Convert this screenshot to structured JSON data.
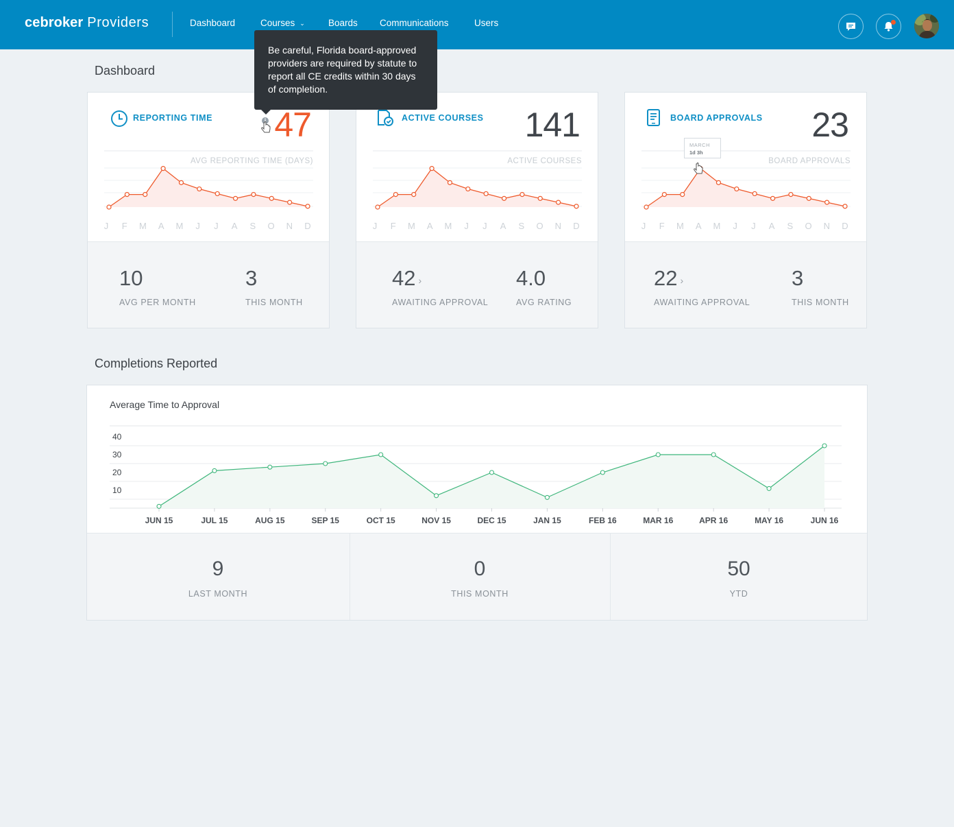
{
  "nav": {
    "brand_bold": "cebroker",
    "brand_light": "Providers",
    "links": [
      "Dashboard",
      "Courses",
      "Boards",
      "Communications",
      "Users"
    ],
    "icons": [
      "chat-icon",
      "bell-icon",
      "avatar"
    ]
  },
  "colors": {
    "nav": "#0189c3",
    "accent_orange": "#ee5a2c",
    "chart_green": "#3fb67c",
    "label_blue": "#0f8fc5"
  },
  "page": {
    "title": "Dashboard",
    "section2_title": "Completions Reported"
  },
  "tooltip": {
    "text": "Be careful, Florida board-approved providers are required by statute to report all CE credits within 30 days of completion."
  },
  "hover_tip": {
    "month": "MARCH",
    "value": "1d 3h"
  },
  "cards": [
    {
      "label": "REPORTING TIME",
      "value": "47",
      "chart_label": "AVG REPORTING TIME (DAYS)",
      "stats": [
        {
          "value": "10",
          "label": "AVG PER MONTH"
        },
        {
          "value": "3",
          "label": "THIS MONTH"
        }
      ]
    },
    {
      "label": "ACTIVE COURSES",
      "value": "141",
      "chart_label": "ACTIVE COURSES",
      "stats": [
        {
          "value": "42",
          "label": "AWAITING APPROVAL"
        },
        {
          "value": "4.0",
          "label": "AVG RATING"
        }
      ]
    },
    {
      "label": "BOARD APPROVALS",
      "value": "23",
      "chart_label": "BOARD APPROVALS",
      "stats": [
        {
          "value": "22",
          "label": "AWAITING APPROVAL"
        },
        {
          "value": "3",
          "label": "THIS MONTH"
        }
      ]
    }
  ],
  "completions": {
    "chart_title": "Average Time to Approval",
    "stats": [
      {
        "value": "9",
        "label": "LAST MONTH"
      },
      {
        "value": "0",
        "label": "THIS MONTH"
      },
      {
        "value": "50",
        "label": "YTD"
      }
    ]
  },
  "chart_data": [
    {
      "type": "area",
      "categories": [
        "J",
        "F",
        "M",
        "A",
        "M",
        "J",
        "J",
        "A",
        "S",
        "O",
        "N",
        "D"
      ],
      "series": [
        {
          "values": [
            0,
            16,
            16,
            49,
            31,
            23,
            17,
            11,
            16,
            11,
            6,
            1
          ]
        }
      ],
      "ylabel": "AVG REPORTING TIME (DAYS)",
      "ylim": [
        0,
        60
      ]
    },
    {
      "type": "area",
      "categories": [
        "J",
        "F",
        "M",
        "A",
        "M",
        "J",
        "J",
        "A",
        "S",
        "O",
        "N",
        "D"
      ],
      "series": [
        {
          "values": [
            0,
            16,
            16,
            49,
            31,
            23,
            17,
            11,
            16,
            11,
            6,
            1
          ]
        }
      ],
      "ylabel": "ACTIVE COURSES",
      "ylim": [
        0,
        60
      ]
    },
    {
      "type": "area",
      "categories": [
        "J",
        "F",
        "M",
        "A",
        "M",
        "J",
        "J",
        "A",
        "S",
        "O",
        "N",
        "D"
      ],
      "series": [
        {
          "values": [
            0,
            16,
            16,
            49,
            31,
            23,
            17,
            11,
            16,
            11,
            6,
            1
          ]
        }
      ],
      "ylabel": "BOARD APPROVALS",
      "ylim": [
        0,
        60
      ]
    },
    {
      "type": "area",
      "title": "Average Time to Approval",
      "categories": [
        "JUN 15",
        "JUL 15",
        "AUG 15",
        "SEP 15",
        "OCT 15",
        "NOV 15",
        "DEC 15",
        "JAN 15",
        "FEB 16",
        "MAR 16",
        "APR 16",
        "MAY 16",
        "JUN 16"
      ],
      "series": [
        {
          "values": [
            1,
            21,
            23,
            25,
            30,
            7,
            20,
            6,
            20,
            30,
            30,
            11,
            35
          ]
        }
      ],
      "yticks": [
        10,
        20,
        30,
        40
      ],
      "ylim": [
        0,
        40
      ],
      "grid": true
    }
  ]
}
